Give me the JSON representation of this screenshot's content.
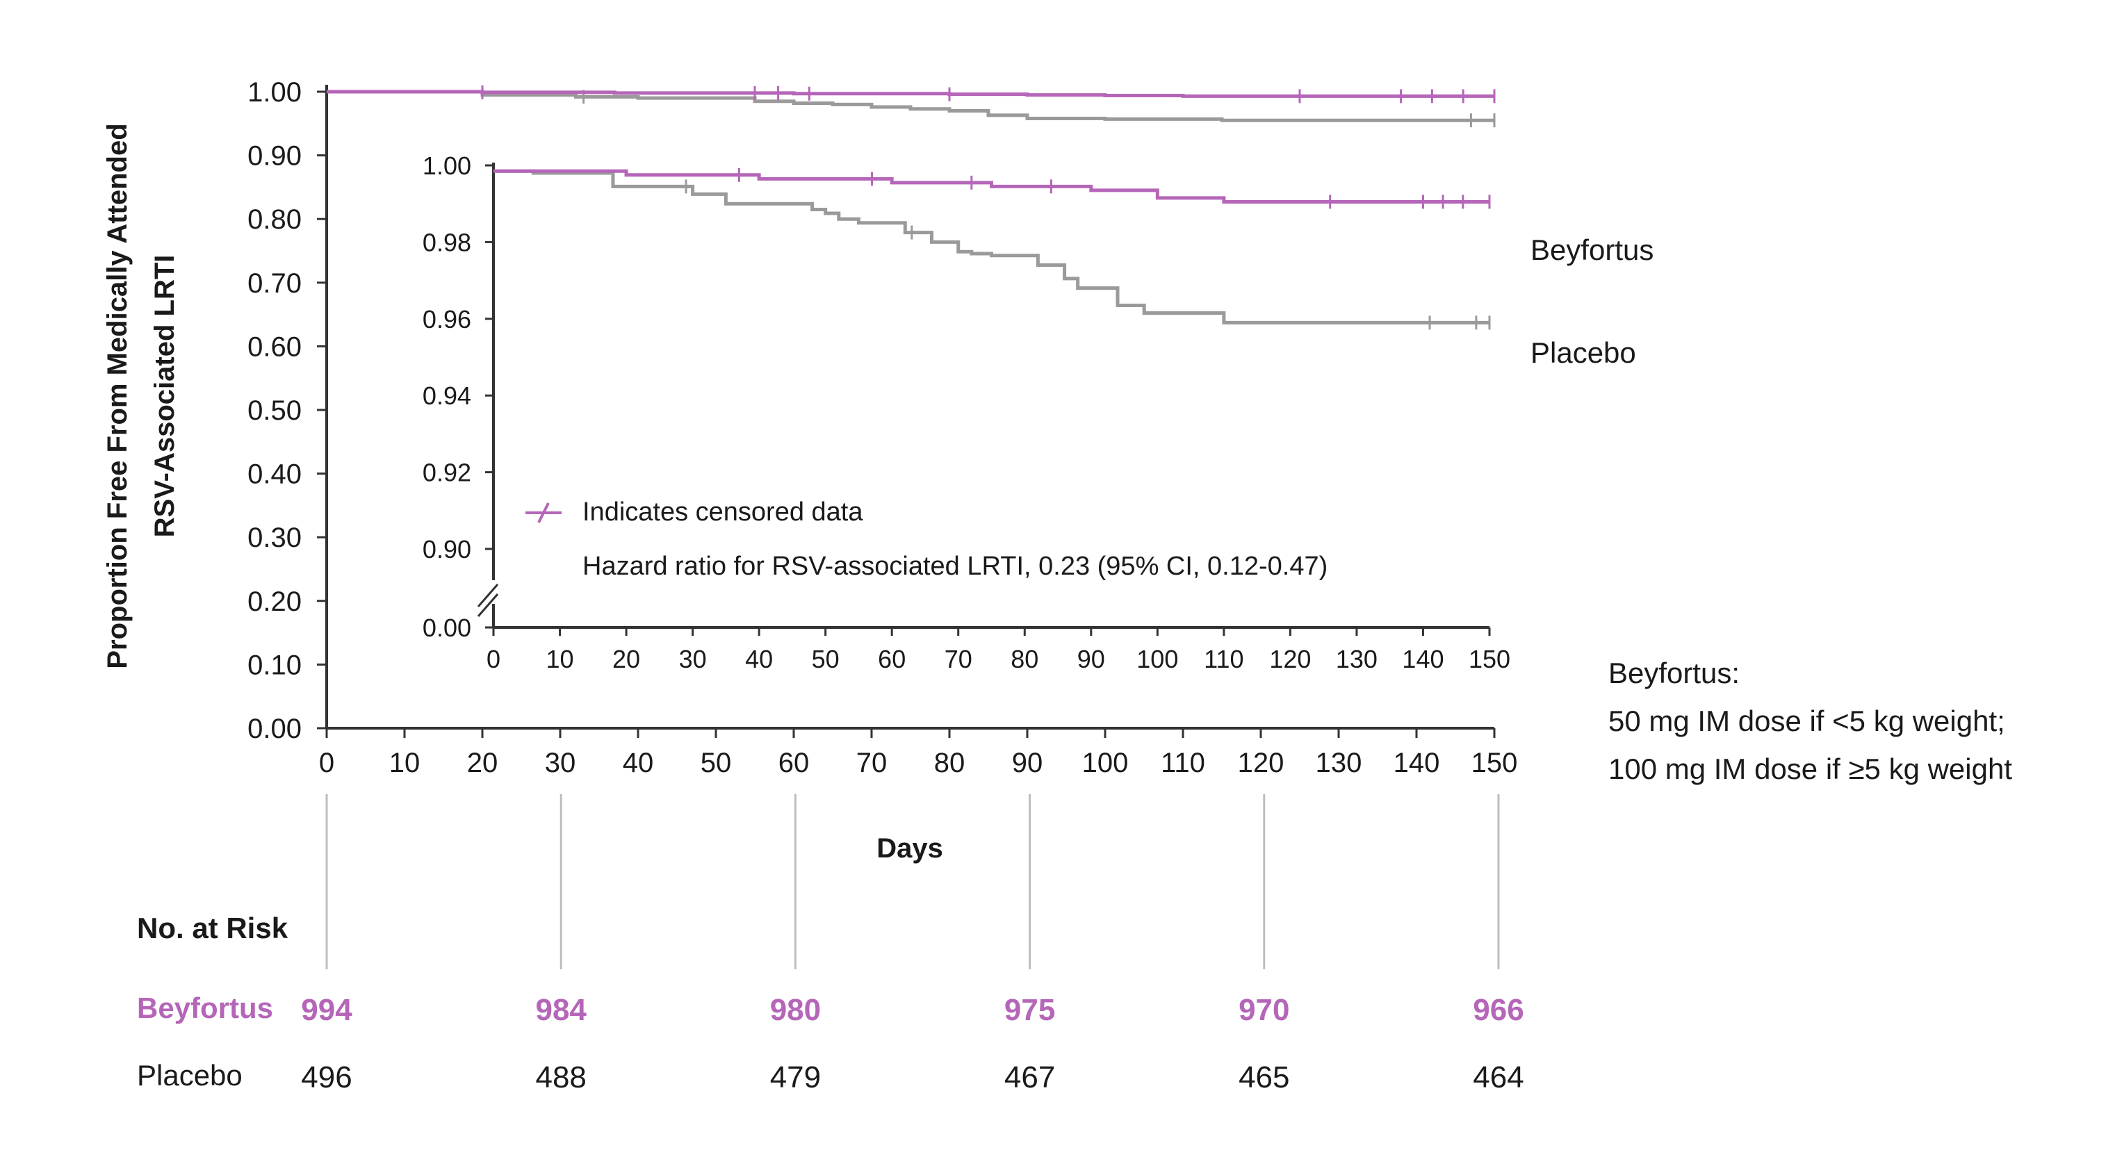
{
  "colors": {
    "beyfortus": "#b566b8",
    "placebo": "#9a9a9a",
    "axis": "#333333"
  },
  "chart_data": {
    "type": "line",
    "subtype": "kaplan-meier",
    "xlabel": "Days",
    "ylabel_lines": [
      "Proportion Free From Medically Attended",
      "RSV-Associated LRTI"
    ],
    "xlim": [
      0,
      150
    ],
    "x_ticks": [
      "0",
      "10",
      "20",
      "30",
      "40",
      "50",
      "60",
      "70",
      "80",
      "90",
      "100",
      "110",
      "120",
      "130",
      "140",
      "150"
    ],
    "ylim": [
      0,
      1
    ],
    "y_ticks": [
      "0.00",
      "0.10",
      "0.20",
      "0.30",
      "0.40",
      "0.50",
      "0.60",
      "0.70",
      "0.80",
      "0.90",
      "1.00"
    ],
    "series": [
      {
        "name": "Beyfortus",
        "color": "#b566b8",
        "x": [
          0,
          20,
          37,
          60,
          80,
          90,
          100,
          110,
          150
        ],
        "y": [
          1.0,
          0.999,
          0.998,
          0.997,
          0.996,
          0.995,
          0.994,
          0.993,
          0.993
        ],
        "censored_x": [
          20,
          55,
          58,
          62,
          80,
          125,
          138,
          142,
          146,
          150
        ]
      },
      {
        "name": "Placebo",
        "color": "#9a9a9a",
        "x": [
          0,
          20,
          32,
          40,
          55,
          60,
          65,
          70,
          75,
          80,
          85,
          90,
          100,
          115,
          150
        ],
        "y": [
          1.0,
          0.995,
          0.992,
          0.99,
          0.985,
          0.982,
          0.98,
          0.976,
          0.973,
          0.97,
          0.963,
          0.958,
          0.957,
          0.955,
          0.955
        ],
        "censored_x": [
          33,
          147,
          150
        ]
      }
    ],
    "inset": {
      "xlim": [
        0,
        150
      ],
      "x_ticks": [
        "0",
        "10",
        "20",
        "30",
        "40",
        "50",
        "60",
        "70",
        "80",
        "90",
        "100",
        "110",
        "120",
        "130",
        "140",
        "150"
      ],
      "ylim": [
        0.89,
        1.0
      ],
      "y_ticks": [
        "0.90",
        "0.92",
        "0.94",
        "0.96",
        "0.98",
        "1.00"
      ],
      "y_break_label": "0.00",
      "series": [
        {
          "name": "Beyfortus",
          "x": [
            0,
            20,
            40,
            60,
            75,
            90,
            100,
            110,
            150
          ],
          "y": [
            0.9985,
            0.9975,
            0.9965,
            0.9955,
            0.9945,
            0.9935,
            0.9915,
            0.9905,
            0.9905
          ],
          "censored_x": [
            37,
            57,
            72,
            84,
            126,
            140,
            143,
            146,
            150
          ]
        },
        {
          "name": "Placebo",
          "x": [
            0,
            6,
            18,
            30,
            35,
            48,
            50,
            52,
            55,
            62,
            66,
            70,
            72,
            75,
            82,
            86,
            88,
            94,
            98,
            110,
            150
          ],
          "y": [
            0.9985,
            0.998,
            0.9945,
            0.9925,
            0.99,
            0.9885,
            0.9875,
            0.986,
            0.985,
            0.9825,
            0.98,
            0.9775,
            0.977,
            0.9765,
            0.974,
            0.9705,
            0.968,
            0.9635,
            0.9615,
            0.959,
            0.959
          ],
          "censored_x": [
            29,
            63,
            141,
            148,
            150
          ]
        }
      ]
    },
    "legend": "Indicates censored data",
    "annotation": "Hazard ratio for RSV-associated LRTI, 0.23 (95% CI, 0.12-0.47)"
  },
  "series_labels": {
    "beyfortus": "Beyfortus",
    "placebo": "Placebo"
  },
  "dose_note": {
    "title": "Beyfortus:",
    "line1": "50 mg IM dose if <5 kg weight;",
    "line2": "100 mg IM dose if ≥5 kg weight"
  },
  "risk_table": {
    "title": "No. at Risk",
    "days": [
      0,
      30,
      60,
      90,
      120,
      150
    ],
    "rows": [
      {
        "label": "Beyfortus",
        "values": [
          "994",
          "984",
          "980",
          "975",
          "970",
          "966"
        ]
      },
      {
        "label": "Placebo",
        "values": [
          "496",
          "488",
          "479",
          "467",
          "465",
          "464"
        ]
      }
    ]
  }
}
